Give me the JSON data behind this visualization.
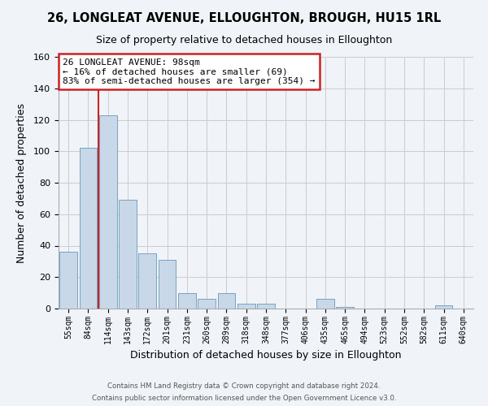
{
  "title": "26, LONGLEAT AVENUE, ELLOUGHTON, BROUGH, HU15 1RL",
  "subtitle": "Size of property relative to detached houses in Elloughton",
  "xlabel": "Distribution of detached houses by size in Elloughton",
  "ylabel": "Number of detached properties",
  "bin_labels": [
    "55sqm",
    "84sqm",
    "114sqm",
    "143sqm",
    "172sqm",
    "201sqm",
    "231sqm",
    "260sqm",
    "289sqm",
    "318sqm",
    "348sqm",
    "377sqm",
    "406sqm",
    "435sqm",
    "465sqm",
    "494sqm",
    "523sqm",
    "552sqm",
    "582sqm",
    "611sqm",
    "640sqm"
  ],
  "bar_heights": [
    36,
    102,
    123,
    69,
    35,
    31,
    10,
    6,
    10,
    3,
    3,
    0,
    0,
    6,
    1,
    0,
    0,
    0,
    0,
    2,
    0
  ],
  "bar_color": "#c8d8e8",
  "bar_edge_color": "#6699bb",
  "vline_x": 1.5,
  "vline_color": "#cc2222",
  "ylim": [
    0,
    160
  ],
  "yticks": [
    0,
    20,
    40,
    60,
    80,
    100,
    120,
    140,
    160
  ],
  "annotation_title": "26 LONGLEAT AVENUE: 98sqm",
  "annotation_line1": "← 16% of detached houses are smaller (69)",
  "annotation_line2": "83% of semi-detached houses are larger (354) →",
  "footer_line1": "Contains HM Land Registry data © Crown copyright and database right 2024.",
  "footer_line2": "Contains public sector information licensed under the Open Government Licence v3.0.",
  "background_color": "#f0f4f8",
  "grid_color": "#cccccc"
}
